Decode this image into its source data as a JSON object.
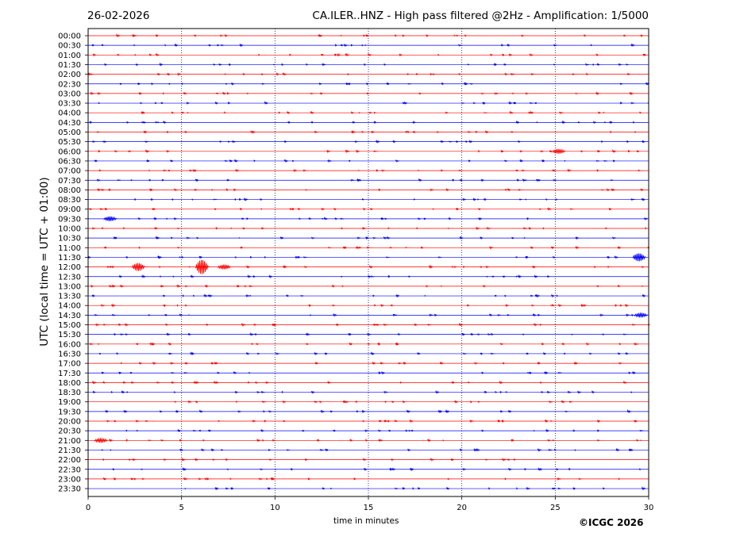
{
  "header": {
    "date": "26-02-2026",
    "title": "CA.ILER..HNZ - High pass filtered @2Hz - Amplification: 1/5000"
  },
  "copyright": "©ICGC 2026",
  "colors": {
    "even_trace": "#ff0000",
    "odd_trace": "#0000ff",
    "gridline": "#000080"
  },
  "chart_data": {
    "type": "line",
    "xlabel": "time in minutes",
    "ylabel": "UTC (local time = UTC + 01:00)",
    "xlim": [
      0,
      30
    ],
    "xticks": [
      0,
      5,
      10,
      15,
      20,
      25,
      30
    ],
    "vertical_grid_minutes": [
      5,
      10,
      15,
      20,
      25
    ],
    "grid": "vertical dotted lines every 5 minutes",
    "row_labels": [
      "00:00",
      "00:30",
      "01:00",
      "01:30",
      "02:00",
      "02:30",
      "03:00",
      "03:30",
      "04:00",
      "04:30",
      "05:00",
      "05:30",
      "06:00",
      "06:30",
      "07:00",
      "07:30",
      "08:00",
      "08:30",
      "09:00",
      "09:30",
      "10:00",
      "10:30",
      "11:00",
      "11:30",
      "12:00",
      "12:30",
      "13:00",
      "13:30",
      "14:00",
      "14:30",
      "15:00",
      "15:30",
      "16:00",
      "16:30",
      "17:00",
      "17:30",
      "18:00",
      "18:30",
      "19:00",
      "19:30",
      "20:00",
      "20:30",
      "21:00",
      "21:30",
      "22:00",
      "22:30",
      "23:00",
      "23:30"
    ],
    "trace_color_pattern": [
      "red",
      "blue"
    ],
    "notable_events": [
      {
        "row": "11:30",
        "minute": 29.5,
        "amplitude": "medium"
      },
      {
        "row": "12:00",
        "minute": 2.7,
        "amplitude": "medium"
      },
      {
        "row": "12:00",
        "minute": 6.1,
        "amplitude": "large"
      },
      {
        "row": "12:00",
        "minute": 7.3,
        "amplitude": "small"
      },
      {
        "row": "06:00",
        "minute": 25.2,
        "amplitude": "small"
      },
      {
        "row": "09:30",
        "minute": 1.2,
        "amplitude": "small"
      },
      {
        "row": "14:30",
        "minute": 29.6,
        "amplitude": "small"
      },
      {
        "row": "21:00",
        "minute": 0.7,
        "amplitude": "small"
      }
    ]
  }
}
